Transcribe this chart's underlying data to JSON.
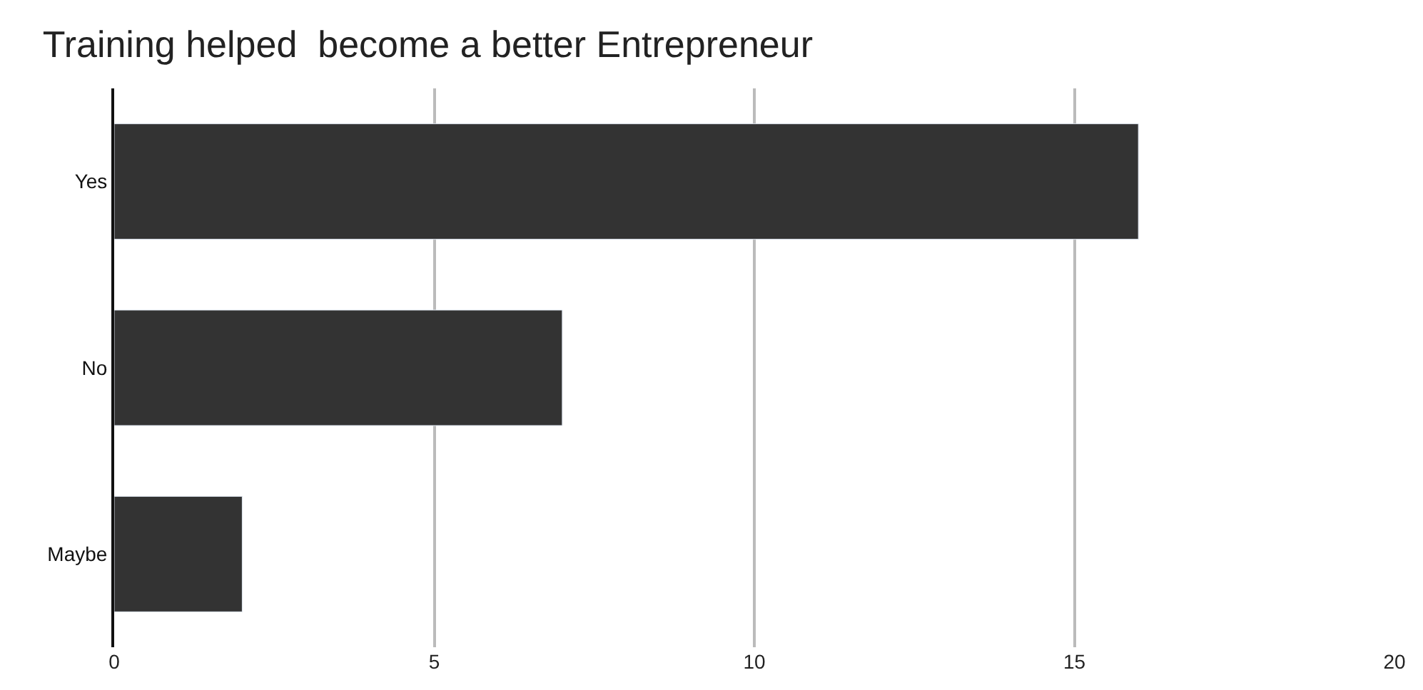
{
  "chart_data": {
    "type": "bar",
    "title": "Training helped  become a better Entrepreneur",
    "orientation": "horizontal",
    "categories": [
      "Yes",
      "No",
      "Maybe"
    ],
    "values": [
      16,
      7,
      2
    ],
    "color": "#333333",
    "xlim": [
      0,
      20
    ],
    "xticks": [
      0,
      5,
      10,
      15,
      20
    ],
    "grid": "x",
    "legend": false
  }
}
